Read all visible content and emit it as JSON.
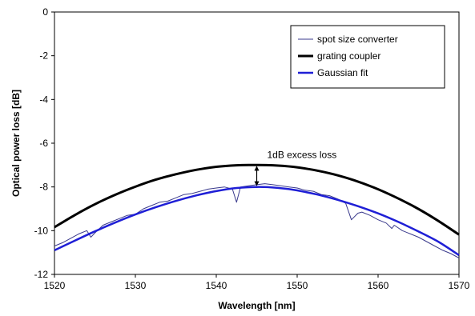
{
  "chart_data": {
    "type": "line",
    "xlabel": "Wavelength [nm]",
    "ylabel": "Optical power loss [dB]",
    "xlim": [
      1520,
      1570
    ],
    "ylim": [
      -12,
      0
    ],
    "xticks": [
      "1520",
      "1530",
      "1540",
      "1550",
      "1560",
      "1570"
    ],
    "yticks": [
      "0",
      "-2",
      "-4",
      "-6",
      "-8",
      "-10",
      "-12"
    ],
    "grid": false,
    "legend_position": "top-right",
    "series": [
      {
        "name": "spot size converter",
        "color": "#3a3a8c",
        "style": "thin noisy line",
        "x": [
          1520,
          1521,
          1522,
          1523,
          1524,
          1524.5,
          1525,
          1526,
          1527,
          1528,
          1529,
          1530,
          1531,
          1532,
          1533,
          1534,
          1535,
          1536,
          1537,
          1538,
          1539,
          1540,
          1541,
          1542,
          1542.5,
          1543,
          1544,
          1545,
          1546,
          1547,
          1548,
          1549,
          1550,
          1551,
          1552,
          1553,
          1554,
          1555,
          1556,
          1556.7,
          1557.5,
          1558,
          1559,
          1560,
          1561,
          1561.7,
          1562,
          1563,
          1564,
          1565,
          1566,
          1567,
          1568,
          1569,
          1570
        ],
        "y": [
          -10.7,
          -10.55,
          -10.35,
          -10.15,
          -10.0,
          -10.3,
          -10.1,
          -9.75,
          -9.6,
          -9.45,
          -9.3,
          -9.25,
          -9.0,
          -8.85,
          -8.7,
          -8.65,
          -8.5,
          -8.35,
          -8.3,
          -8.2,
          -8.1,
          -8.05,
          -8.0,
          -8.1,
          -8.7,
          -8.0,
          -7.95,
          -7.9,
          -7.85,
          -7.9,
          -7.95,
          -8.0,
          -8.05,
          -8.15,
          -8.2,
          -8.35,
          -8.4,
          -8.55,
          -8.75,
          -9.5,
          -9.2,
          -9.15,
          -9.3,
          -9.5,
          -9.65,
          -9.9,
          -9.75,
          -10.0,
          -10.15,
          -10.3,
          -10.5,
          -10.7,
          -10.9,
          -11.05,
          -11.25
        ]
      },
      {
        "name": "grating coupler",
        "color": "#000000",
        "style": "thick line",
        "x": [
          1520,
          1522.5,
          1525,
          1527.5,
          1530,
          1532.5,
          1535,
          1537.5,
          1540,
          1542.5,
          1544.5,
          1547,
          1549.5,
          1552,
          1554.5,
          1557,
          1559.5,
          1562,
          1564.5,
          1567,
          1570
        ],
        "y": [
          -9.84,
          -9.29,
          -8.79,
          -8.36,
          -7.99,
          -7.67,
          -7.42,
          -7.22,
          -7.08,
          -7.01,
          -7.0,
          -7.01,
          -7.08,
          -7.22,
          -7.42,
          -7.69,
          -8.03,
          -8.44,
          -8.91,
          -9.45,
          -10.18
        ]
      },
      {
        "name": "Gaussian fit",
        "color": "#1f1fd6",
        "style": "thick line",
        "x": [
          1520,
          1522.5,
          1525,
          1527.5,
          1530,
          1532.5,
          1535,
          1537.5,
          1540,
          1542.5,
          1545,
          1547.5,
          1550,
          1552.5,
          1555,
          1557.5,
          1560,
          1562.5,
          1565,
          1567.5,
          1570
        ],
        "y": [
          -10.9,
          -10.46,
          -10.03,
          -9.63,
          -9.26,
          -8.93,
          -8.64,
          -8.39,
          -8.19,
          -8.05,
          -8.0,
          -8.04,
          -8.16,
          -8.35,
          -8.59,
          -8.88,
          -9.21,
          -9.6,
          -10.04,
          -10.52,
          -11.12
        ]
      }
    ],
    "annotations": [
      {
        "text": "1dB excess loss",
        "x": 1545,
        "y_top": -7.0,
        "y_bottom": -8.0,
        "arrow": "double"
      }
    ]
  }
}
